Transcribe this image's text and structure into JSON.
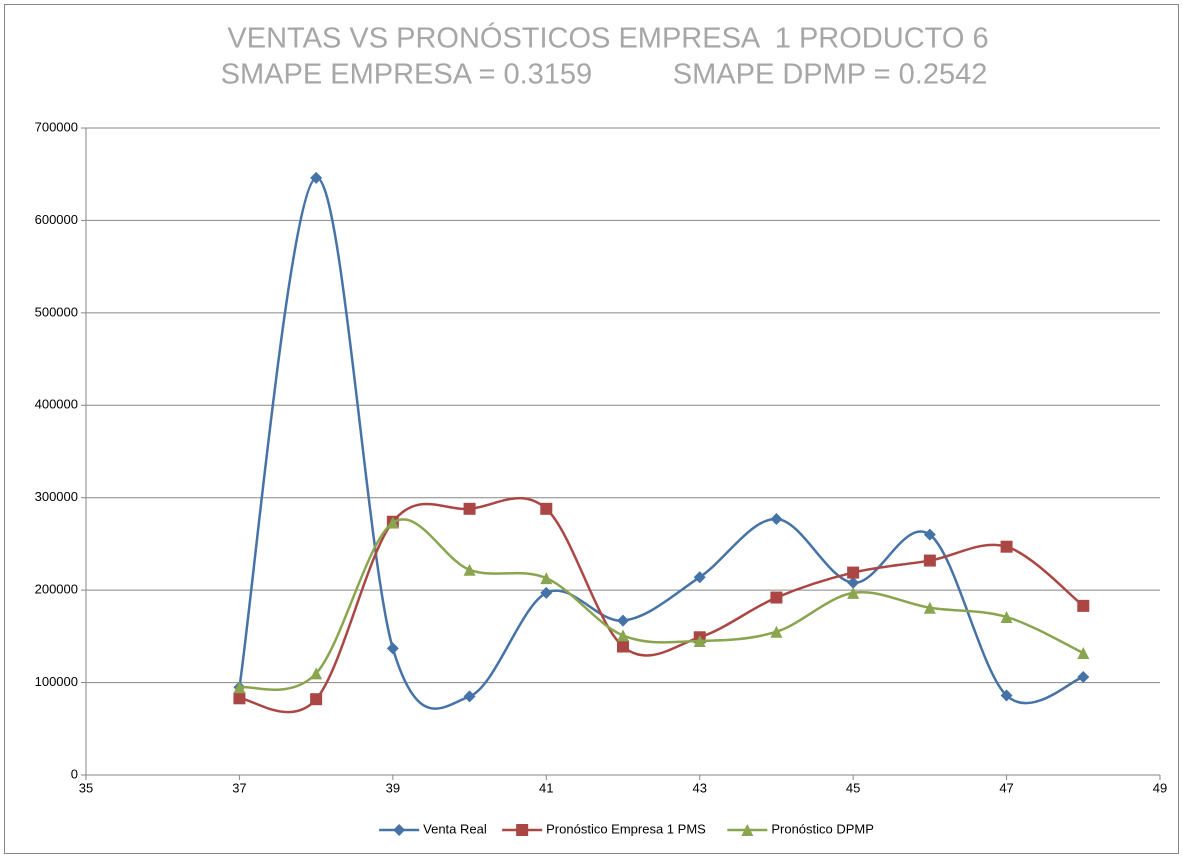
{
  "chart_data": {
    "type": "line",
    "title": "VENTAS VS PRONÓSTICOS EMPRESA  1 PRODUCTO 6",
    "subtitle": "SMAPE EMPRESA = 0.3159          SMAPE DPMP = 0.2542",
    "x": [
      37,
      38,
      39,
      40,
      41,
      42,
      43,
      44,
      45,
      46,
      47,
      48
    ],
    "series": [
      {
        "name": "Venta Real",
        "color": "#4572a7",
        "marker": "diamond",
        "values": [
          95000,
          646000,
          137000,
          85000,
          197000,
          167000,
          214000,
          277000,
          208000,
          260000,
          86000,
          106000
        ]
      },
      {
        "name": "Pronóstico Empresa 1 PMS",
        "color": "#aa4643",
        "marker": "square",
        "values": [
          83000,
          82000,
          274000,
          288000,
          288000,
          139000,
          149000,
          192000,
          219000,
          232000,
          247000,
          183000
        ]
      },
      {
        "name": "Pronóstico DPMP",
        "color": "#89a54e",
        "marker": "triangle",
        "values": [
          95000,
          110000,
          273000,
          222000,
          213000,
          151000,
          145000,
          155000,
          197000,
          181000,
          171000,
          132000
        ]
      }
    ],
    "xlim": [
      35,
      49
    ],
    "xticks": [
      35,
      37,
      39,
      41,
      43,
      45,
      47,
      49
    ],
    "ylim": [
      0,
      700000
    ],
    "yticks": [
      0,
      100000,
      200000,
      300000,
      400000,
      500000,
      600000,
      700000
    ],
    "grid": true,
    "smooth": true,
    "legend": "bottom"
  }
}
